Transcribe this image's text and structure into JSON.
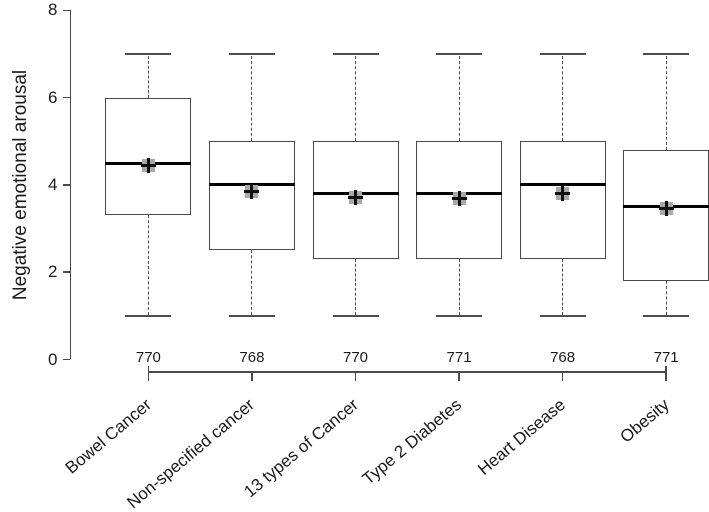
{
  "chart_data": {
    "type": "boxplot",
    "title": "",
    "xlabel": "",
    "ylabel": "Negative emotional arousal",
    "ylim": [
      0,
      8
    ],
    "yticks": [
      "0",
      "2",
      "4",
      "6",
      "8"
    ],
    "grid": false,
    "legend": null,
    "categories": [
      "Bowel Cancer",
      "Non-specified cancer",
      "13 types of Cancer",
      "Type 2 Diabetes",
      "Heart Disease",
      "Obesity"
    ],
    "n_labels": [
      "770",
      "768",
      "770",
      "771",
      "768",
      "771"
    ],
    "series": [
      {
        "category": "Bowel Cancer",
        "n": 770,
        "whisker_low": 1,
        "q1": 3.3,
        "median": 4.5,
        "q3": 6.0,
        "whisker_high": 7,
        "mean": 4.45
      },
      {
        "category": "Non-specified cancer",
        "n": 768,
        "whisker_low": 1,
        "q1": 2.5,
        "median": 4.0,
        "q3": 5.0,
        "whisker_high": 7,
        "mean": 3.85
      },
      {
        "category": "13 types of Cancer",
        "n": 770,
        "whisker_low": 1,
        "q1": 2.3,
        "median": 3.8,
        "q3": 5.0,
        "whisker_high": 7,
        "mean": 3.72
      },
      {
        "category": "Type 2 Diabetes",
        "n": 771,
        "whisker_low": 1,
        "q1": 2.3,
        "median": 3.8,
        "q3": 5.0,
        "whisker_high": 7,
        "mean": 3.68
      },
      {
        "category": "Heart Disease",
        "n": 768,
        "whisker_low": 1,
        "q1": 2.3,
        "median": 4.0,
        "q3": 5.0,
        "whisker_high": 7,
        "mean": 3.8
      },
      {
        "category": "Obesity",
        "n": 771,
        "whisker_low": 1,
        "q1": 1.8,
        "median": 3.5,
        "q3": 4.8,
        "whisker_high": 7,
        "mean": 3.45
      }
    ],
    "colors": {
      "background": "#ffffff",
      "axis": "#4a4a4a",
      "box_border": "#4a4a4a",
      "median": "#000000",
      "mean_square": "#a8a8a8",
      "mean_cross": "#111111",
      "text": "#1a1a1a"
    }
  }
}
